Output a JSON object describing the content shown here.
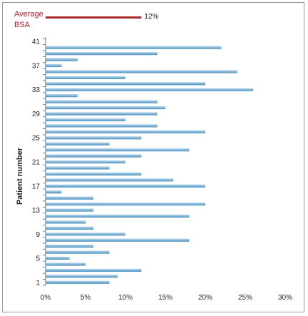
{
  "chart_data": {
    "type": "bar",
    "orientation": "horizontal",
    "ylabel": "Patient number",
    "xlabel": "",
    "xlim": [
      0,
      30
    ],
    "x_ticks": [
      "0%",
      "5%",
      "10%",
      "15%",
      "20%",
      "25%",
      "30%"
    ],
    "y_ticks": [
      "1",
      "5",
      "9",
      "13",
      "17",
      "21",
      "25",
      "29",
      "33",
      "37",
      "41"
    ],
    "categories": [
      "1",
      "2",
      "3",
      "4",
      "5",
      "6",
      "7",
      "8",
      "9",
      "10",
      "11",
      "12",
      "13",
      "14",
      "15",
      "16",
      "17",
      "18",
      "19",
      "20",
      "21",
      "22",
      "23",
      "24",
      "25",
      "26",
      "27",
      "28",
      "29",
      "30",
      "31",
      "32",
      "33",
      "34",
      "35",
      "36",
      "37",
      "38",
      "39",
      "40",
      "41"
    ],
    "values": [
      8,
      9,
      12,
      5,
      3,
      8,
      6,
      18,
      10,
      6,
      5,
      18,
      6,
      20,
      6,
      2,
      20,
      16,
      12,
      8,
      10,
      12,
      18,
      8,
      12,
      20,
      14,
      10,
      14,
      15,
      14,
      4,
      26,
      20,
      10,
      24,
      2,
      4,
      14,
      22,
      0
    ],
    "bar_color": "#7db3d6",
    "average": {
      "label": "Average BSA",
      "value": 12,
      "value_label": "12%",
      "color": "#a52a2a"
    },
    "grid": false,
    "legend": "none"
  }
}
